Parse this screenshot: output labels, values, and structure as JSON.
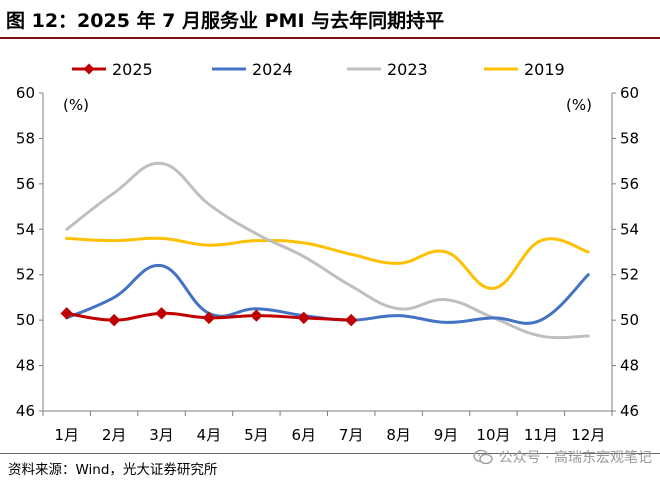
{
  "title": "图 12：2025 年 7 月服务业 PMI 与去年同期持平",
  "source": "资料来源：Wind，光大证券研究所",
  "watermark": "公众号 · 高瑞东宏观笔记",
  "chart_data": {
    "type": "line",
    "categories": [
      "1月",
      "2月",
      "3月",
      "4月",
      "5月",
      "6月",
      "7月",
      "8月",
      "9月",
      "10月",
      "11月",
      "12月"
    ],
    "ylim": [
      46,
      60
    ],
    "yticks": [
      46,
      48,
      50,
      52,
      54,
      56,
      58,
      60
    ],
    "left_unit": "(%)",
    "right_unit": "(%)",
    "grid": false,
    "legend_position": "top",
    "series": [
      {
        "name": "2025",
        "color": "#c00000",
        "marker": "diamond",
        "values": [
          50.3,
          50.0,
          50.3,
          50.1,
          50.2,
          50.1,
          50.0,
          null,
          null,
          null,
          null,
          null
        ]
      },
      {
        "name": "2024",
        "color": "#4472c4",
        "marker": "none",
        "values": [
          50.1,
          51.0,
          52.4,
          50.3,
          50.5,
          50.2,
          50.0,
          50.2,
          49.9,
          50.1,
          50.0,
          52.0
        ]
      },
      {
        "name": "2023",
        "color": "#bfbfbf",
        "marker": "none",
        "values": [
          54.0,
          55.6,
          56.9,
          55.1,
          53.8,
          52.8,
          51.5,
          50.5,
          50.9,
          50.1,
          49.3,
          49.3
        ]
      },
      {
        "name": "2019",
        "color": "#ffc000",
        "marker": "none",
        "values": [
          53.6,
          53.5,
          53.6,
          53.3,
          53.5,
          53.4,
          52.9,
          52.5,
          53.0,
          51.4,
          53.5,
          53.0
        ]
      }
    ]
  }
}
